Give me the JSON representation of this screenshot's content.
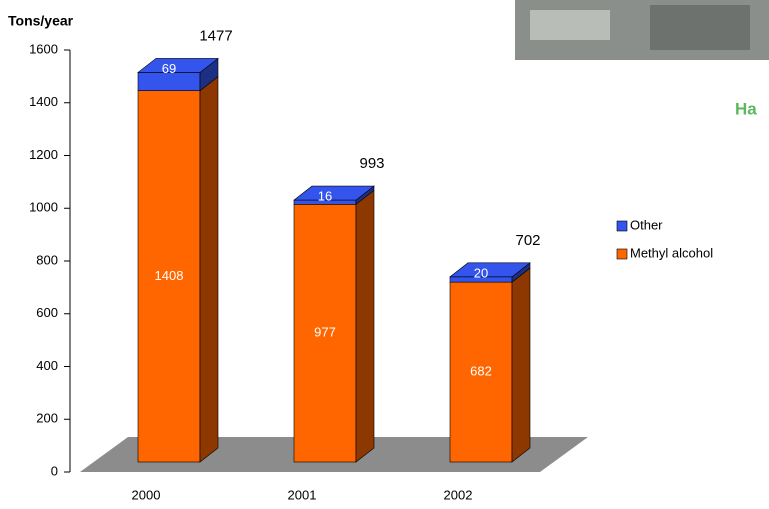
{
  "chart_data": {
    "type": "bar3d-stacked",
    "y_label": "Tons/year",
    "categories": [
      "2000",
      "2001",
      "2002"
    ],
    "series": [
      {
        "name": "Methyl alcohol",
        "color": "#ff6600",
        "values": [
          1408,
          977,
          682
        ]
      },
      {
        "name": "Other",
        "color": "#3355ee",
        "values": [
          69,
          16,
          20
        ]
      }
    ],
    "totals": [
      1477,
      993,
      702
    ],
    "ylim": [
      0,
      1600
    ],
    "yticks": [
      0,
      200,
      400,
      600,
      800,
      1000,
      1200,
      1400,
      1600
    ],
    "legend": "right",
    "annotation": "Ha"
  }
}
